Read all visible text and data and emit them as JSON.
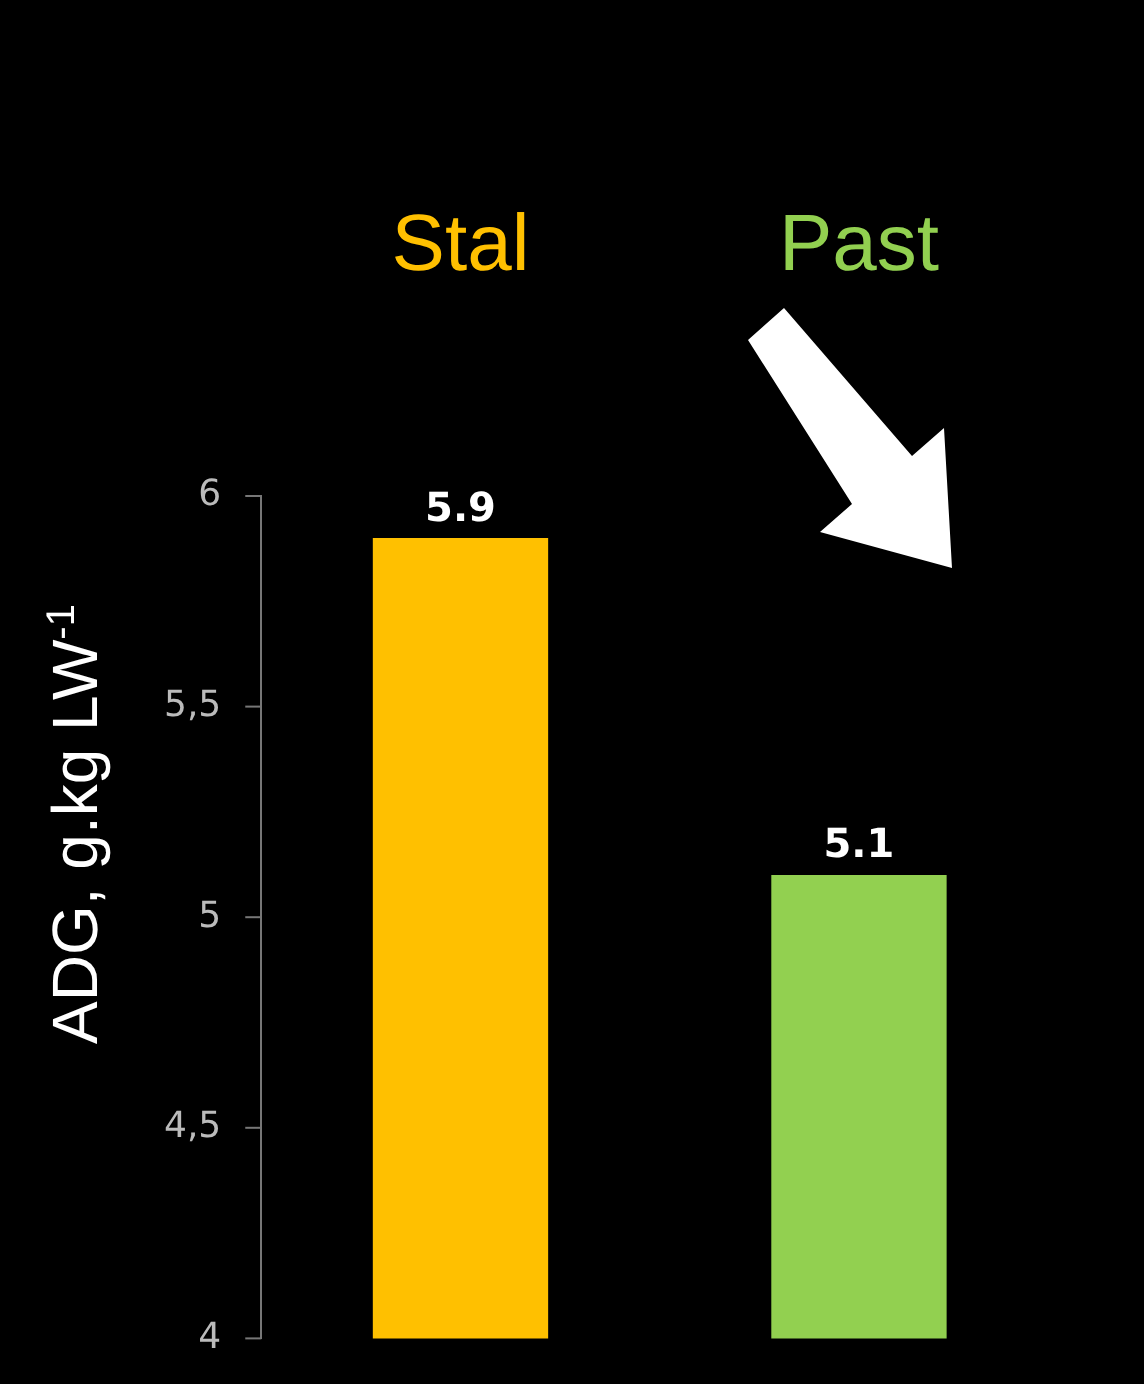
{
  "chart_data": {
    "type": "bar",
    "ylabel": "ADG, g.kg LW$^{-1}$",
    "categories": [
      "Stal",
      "Past"
    ],
    "values": [
      5.9,
      5.1
    ],
    "colors": [
      "#ffc000",
      "#92d050"
    ],
    "ylim": [
      4,
      6
    ],
    "yticks": [
      {
        "value": 4,
        "label": "4"
      },
      {
        "value": 4.5,
        "label": "4,5"
      },
      {
        "value": 5,
        "label": "5"
      },
      {
        "value": 5.5,
        "label": "5,5"
      },
      {
        "value": 6,
        "label": "6"
      }
    ],
    "grid": false,
    "legend": false,
    "data_labels": true
  }
}
